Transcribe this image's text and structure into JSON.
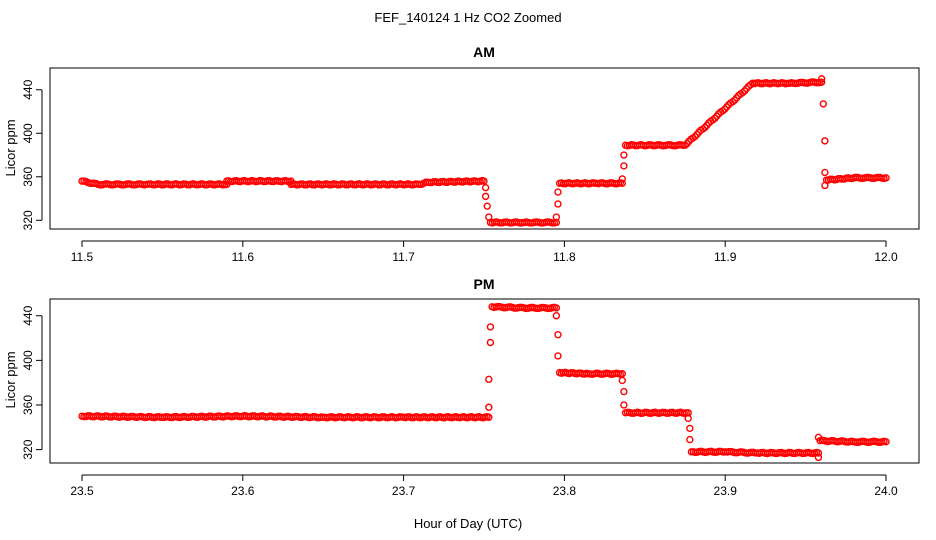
{
  "figure": {
    "title": "FEF_140124  1 Hz CO2 Zoomed",
    "xlabel": "Hour of Day (UTC)"
  },
  "colors": {
    "points": "#ff0000",
    "axes": "#000000",
    "background": "#ffffff"
  },
  "chart_data": [
    {
      "type": "scatter",
      "title": "AM",
      "xlabel": "",
      "ylabel": "Licor ppm",
      "xlim": [
        11.5,
        12.0
      ],
      "ylim": [
        312,
        460
      ],
      "xticks": [
        "11.5",
        "11.6",
        "11.7",
        "11.8",
        "11.9",
        "12.0"
      ],
      "yticks": [
        "320",
        "360",
        "400",
        "440"
      ],
      "grid": false,
      "marker": "open-circle",
      "series": [
        {
          "points": [
            [
              11.5,
              356
            ],
            [
              11.51,
              353
            ],
            [
              11.54,
              353
            ],
            [
              11.59,
              353
            ],
            [
              11.59,
              356
            ],
            [
              11.63,
              356
            ],
            [
              11.63,
              353
            ],
            [
              11.71,
              353
            ],
            [
              11.715,
              355
            ],
            [
              11.75,
              356
            ],
            [
              11.751,
              350
            ],
            [
              11.751,
              342
            ],
            [
              11.752,
              333
            ],
            [
              11.753,
              323
            ],
            [
              11.754,
              318
            ],
            [
              11.775,
              318
            ],
            [
              11.795,
              318
            ],
            [
              11.795,
              323
            ],
            [
              11.796,
              335
            ],
            [
              11.796,
              346
            ],
            [
              11.797,
              354
            ],
            [
              11.82,
              354
            ],
            [
              11.836,
              354
            ],
            [
              11.836,
              358
            ],
            [
              11.837,
              370
            ],
            [
              11.837,
              380
            ],
            [
              11.838,
              389
            ],
            [
              11.86,
              389
            ],
            [
              11.875,
              389
            ],
            [
              11.917,
              446
            ],
            [
              11.94,
              446
            ],
            [
              11.96,
              447
            ],
            [
              11.96,
              450
            ],
            [
              11.961,
              427
            ],
            [
              11.962,
              393
            ],
            [
              11.962,
              364
            ],
            [
              11.962,
              352
            ],
            [
              11.963,
              357
            ],
            [
              11.98,
              359
            ],
            [
              12.0,
              359
            ]
          ]
        }
      ]
    },
    {
      "type": "scatter",
      "title": "PM",
      "xlabel": "Hour of Day (UTC)",
      "ylabel": "Licor ppm",
      "xlim": [
        23.5,
        24.0
      ],
      "ylim": [
        308,
        455
      ],
      "xticks": [
        "23.5",
        "23.6",
        "23.7",
        "23.8",
        "23.9",
        "24.0"
      ],
      "yticks": [
        "320",
        "360",
        "400",
        "440"
      ],
      "grid": false,
      "marker": "open-circle",
      "series": [
        {
          "points": [
            [
              23.5,
              350
            ],
            [
              23.55,
              349
            ],
            [
              23.6,
              350
            ],
            [
              23.65,
              349
            ],
            [
              23.7,
              349
            ],
            [
              23.753,
              349
            ],
            [
              23.753,
              358
            ],
            [
              23.753,
              383
            ],
            [
              23.754,
              416
            ],
            [
              23.754,
              430
            ],
            [
              23.755,
              448
            ],
            [
              23.775,
              447
            ],
            [
              23.795,
              447
            ],
            [
              23.795,
              440
            ],
            [
              23.796,
              423
            ],
            [
              23.796,
              404
            ],
            [
              23.797,
              389
            ],
            [
              23.815,
              388
            ],
            [
              23.836,
              388
            ],
            [
              23.836,
              382
            ],
            [
              23.837,
              372
            ],
            [
              23.837,
              360
            ],
            [
              23.838,
              353
            ],
            [
              23.86,
              353
            ],
            [
              23.877,
              353
            ],
            [
              23.877,
              348
            ],
            [
              23.878,
              339
            ],
            [
              23.878,
              329
            ],
            [
              23.879,
              318
            ],
            [
              23.9,
              318
            ],
            [
              23.92,
              317
            ],
            [
              23.958,
              317
            ],
            [
              23.958,
              313
            ],
            [
              23.958,
              331
            ],
            [
              23.959,
              328
            ],
            [
              23.98,
              327
            ],
            [
              24.0,
              327
            ]
          ]
        }
      ]
    }
  ]
}
